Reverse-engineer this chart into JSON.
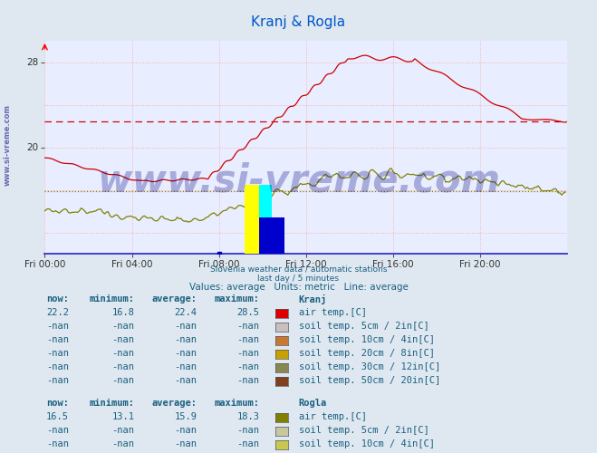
{
  "title": "Kranj & Rogla",
  "title_color": "#0055cc",
  "bg_color": "#dfe8f0",
  "plot_bg_color": "#e8eeff",
  "grid_color_pink": "#ffaaaa",
  "ylim": [
    10,
    30
  ],
  "xlim": [
    0,
    288
  ],
  "xtick_positions": [
    0,
    48,
    96,
    144,
    192,
    240
  ],
  "xtick_labels": [
    "Fri 00:00",
    "Fri 04:00",
    "Fri 08:00",
    "Fri 12:00",
    "Fri 16:00",
    "Fri 20:00"
  ],
  "kranj_color": "#cc0000",
  "rogla_color": "#808000",
  "kranj_avg_line": 22.4,
  "rogla_avg_line": 15.9,
  "watermark_color": "#000080",
  "info_text": "Values: average   Units: metric   Line: average",
  "info_text2_line1": "Slovenia weather data / automatic stations",
  "info_text2_line2": "last day / 5 minutes",
  "kranj_now": "22.2",
  "kranj_min": "16.8",
  "kranj_avg": "22.4",
  "kranj_max": "28.5",
  "rogla_now": "16.5",
  "rogla_min": "13.1",
  "rogla_avg": "15.9",
  "rogla_max": "18.3",
  "kranj_air_color": "#dd0000",
  "kranj_soil_colors": [
    "#c8c0c0",
    "#c87832",
    "#c8a000",
    "#888850",
    "#804020"
  ],
  "rogla_air_color": "#808000",
  "rogla_soil_colors": [
    "#c8c8a0",
    "#c8c850",
    "#c8c820",
    "#a0a820",
    "#808020"
  ],
  "table_color": "#1a6080",
  "left_watermark": "www.si-vreme.com"
}
